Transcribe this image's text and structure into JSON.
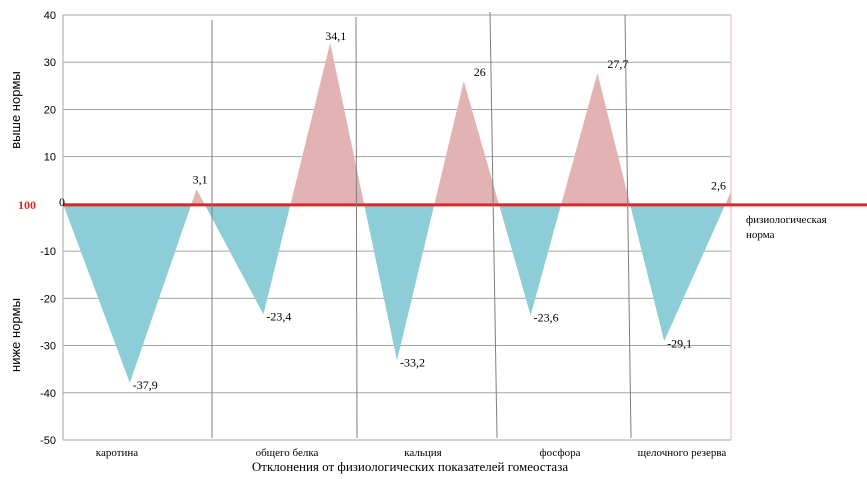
{
  "chart_data": {
    "type": "area",
    "ylim": [
      -50,
      40
    ],
    "yticks": [
      -50,
      -40,
      -30,
      -20,
      -10,
      0,
      10,
      20,
      30,
      40
    ],
    "ytick_labels": [
      "-50",
      "-40",
      "-30",
      "-20",
      "-10",
      "",
      "10",
      "20",
      "30",
      "40"
    ],
    "zero_label": "100",
    "categories": [
      "каротина",
      "общего белка",
      "кальция",
      "фосфора",
      "щелочного резерва"
    ],
    "points": [
      {
        "label": "0",
        "value": 0
      },
      {
        "label": "-37,9",
        "value": -37.9
      },
      {
        "label": "3,1",
        "value": 3.1
      },
      {
        "label": "-23,4",
        "value": -23.4
      },
      {
        "label": "34,1",
        "value": 34.1
      },
      {
        "label": "-33,2",
        "value": -33.2
      },
      {
        "label": "26",
        "value": 26
      },
      {
        "label": "-23,6",
        "value": -23.6
      },
      {
        "label": "27,7",
        "value": 27.7
      },
      {
        "label": "-29,1",
        "value": -29.1
      },
      {
        "label": "2,6",
        "value": 2.6
      }
    ],
    "ylabel_upper": "выше нормы",
    "ylabel_lower": "ниже нормы",
    "xlabel": "Отклонения от физиологических показателей гомеостаза",
    "norm_label_line1": "физиологическая",
    "norm_label_line2": "норма",
    "colors": {
      "positive": "#e3b3b4",
      "negative": "#8ccdd8",
      "norm_line": "#d42a2a",
      "grid": "#a6a6a6",
      "separator": "#7f7f7f",
      "frame": "#e8b7b7"
    },
    "grid": true
  }
}
